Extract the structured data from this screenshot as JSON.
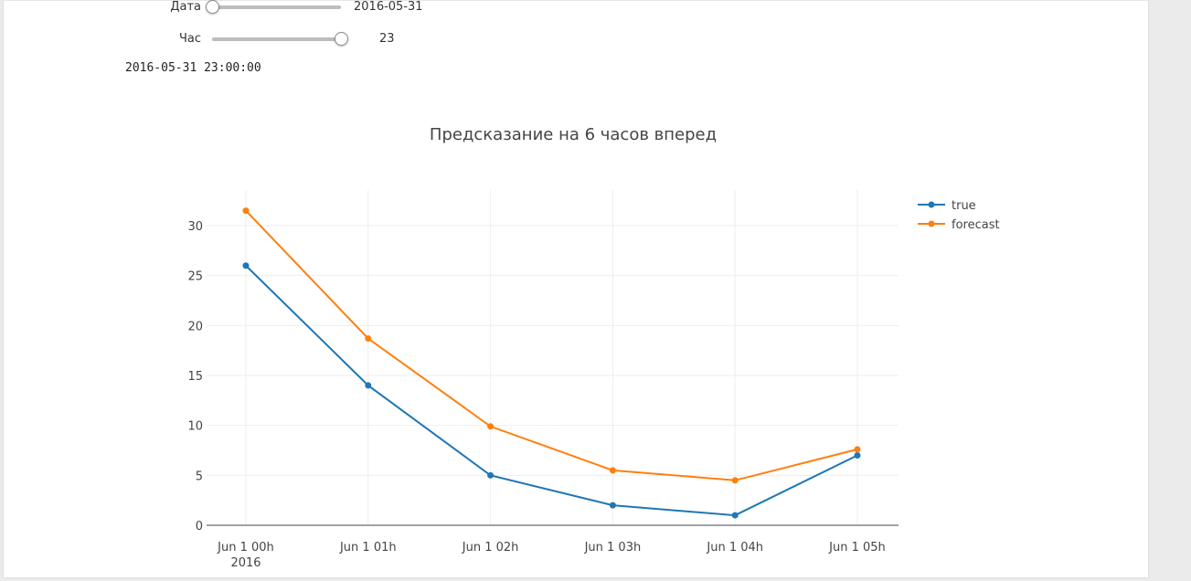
{
  "controls": {
    "date": {
      "label": "Дата",
      "value": "2016-05-31",
      "position": 0.0
    },
    "hour": {
      "label": "Час",
      "value": "23",
      "position": 1.0
    },
    "datetime_readout": "2016-05-31 23:00:00"
  },
  "chart_data": {
    "type": "line",
    "title": "Предсказание на 6 часов вперед",
    "xlabel": "",
    "ylabel": "",
    "categories": [
      "Jun 1 00h",
      "Jun 1 01h",
      "Jun 1 02h",
      "Jun 1 03h",
      "Jun 1 04h",
      "Jun 1 05h"
    ],
    "x_year_label": "2016",
    "series": [
      {
        "name": "true",
        "color": "#1f77b4",
        "values": [
          26,
          14,
          5,
          2,
          1,
          7
        ]
      },
      {
        "name": "forecast",
        "color": "#ff7f0e",
        "values": [
          31.5,
          18.7,
          9.9,
          5.5,
          4.5,
          7.6
        ]
      }
    ],
    "ylim": [
      0,
      33
    ],
    "yticks": [
      0,
      5,
      10,
      15,
      20,
      25,
      30
    ],
    "grid": true,
    "legend_position": "top-right"
  }
}
